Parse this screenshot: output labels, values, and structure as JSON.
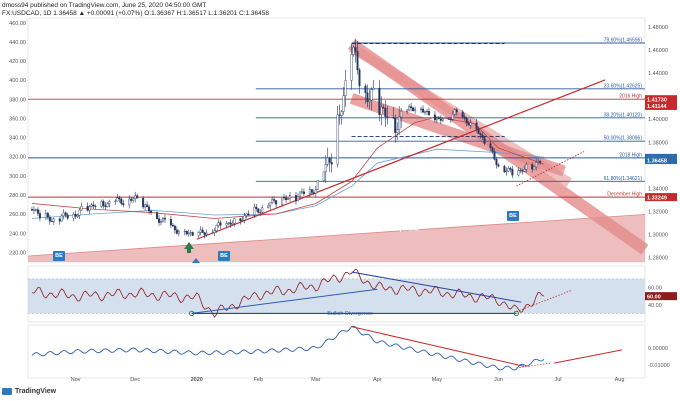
{
  "header": {
    "line1": "dmoss94 published on TradingView.com, June 25, 2020 04:50:00 GMT",
    "line2": "FX:USDCAD, 1D  1.36458 ▲ +0.00091 (+0.07%) O:1.36367 H:1.36517 L:1.36201 C:1.36458"
  },
  "footer": {
    "brand": "TradingView"
  },
  "colors": {
    "candle_up": "#2f4a7a",
    "candle_down": "#2f4a7a",
    "resistance": "#b5373a",
    "support_blue": "#2b5a9e",
    "channel_fill": "#e8a8a8",
    "rsi_band": "#c7d6e8",
    "label_blue": "#2b6cb0",
    "label_red": "#c42b2b"
  },
  "chart_data": [
    {
      "type": "line",
      "title": "",
      "xlabel": "",
      "ylabel": "",
      "x_ticks": [
        "Nov",
        "Dec",
        "2020",
        "Feb",
        "Mar",
        "Apr",
        "May",
        "Jun",
        "Jul",
        "Aug"
      ],
      "left_ticks": [
        "460.00",
        "440.00",
        "420.00",
        "400.00",
        "380.00",
        "360.00",
        "340.00",
        "320.00",
        "300.00",
        "280.00",
        "260.00",
        "240.00",
        "220.00"
      ],
      "left_ylim": [
        210,
        465
      ],
      "right_ticks": [
        "1.48000",
        "1.46000",
        "1.44000",
        "1.42000",
        "1.40000",
        "1.38000",
        "1.36000",
        "1.34000",
        "1.32000",
        "1.30000",
        "1.28000"
      ],
      "right_ylim": [
        1.2763,
        1.4876
      ],
      "series": [
        {
          "x": [
            "Oct 10",
            "Oct 20",
            "Nov 1",
            "Nov 10",
            "Nov 20",
            "Dec 1",
            "Dec 10",
            "Dec 20",
            "Jan 1",
            "Jan 10",
            "Jan 20",
            "Feb 1",
            "Feb 10",
            "Feb 20",
            "Mar 1",
            "Mar 10",
            "Mar 19",
            "Mar 25",
            "Apr 1",
            "Apr 10",
            "Apr 20",
            "May 1",
            "May 10",
            "May 20",
            "Jun 1",
            "Jun 8",
            "Jun 15",
            "Jun 24"
          ],
          "y": [
            1.322,
            1.312,
            1.318,
            1.326,
            1.328,
            1.331,
            1.318,
            1.306,
            1.299,
            1.305,
            1.312,
            1.322,
            1.329,
            1.333,
            1.34,
            1.375,
            1.459,
            1.425,
            1.412,
            1.398,
            1.412,
            1.398,
            1.405,
            1.395,
            1.36,
            1.352,
            1.358,
            1.3646
          ]
        }
      ],
      "levels": [
        {
          "label": "78.60%(1.46596)",
          "value": 1.46596,
          "color": "#2b5a9e"
        },
        {
          "label": "23.60%(1.42625)",
          "value": 1.42625,
          "color": "#2b5a9e"
        },
        {
          "label": "2016 High",
          "value": 1.4173,
          "color": "#b5373a"
        },
        {
          "label": "38.20%(1.40120)",
          "value": 1.4012,
          "color": "#2b5a9e"
        },
        {
          "label": "50.00%(1.38096)",
          "value": 1.38096,
          "color": "#2b5a9e"
        },
        {
          "label": "2018 High",
          "value": 1.36648,
          "color": "#2b5a9e"
        },
        {
          "label": "61.80%(1.34621)",
          "value": 1.34621,
          "color": "#2b5a9e"
        },
        {
          "label": "December High",
          "value": 1.33249,
          "color": "#b5373a"
        }
      ],
      "price_tags": [
        {
          "label": "1.41730",
          "value": 1.4173,
          "color": "#c42b2b"
        },
        {
          "label": "1.41144",
          "value": 1.41144,
          "color": "#c42b2b"
        },
        {
          "label": "1.36648",
          "value": 1.36648,
          "color": "#2b6cb0"
        },
        {
          "label": "1.36458",
          "value": 1.36458,
          "color": "#2b6cb0"
        },
        {
          "label": "1.33249",
          "value": 1.33249,
          "color": "#c42b2b"
        }
      ],
      "annotations": [
        "2011 Uptrend"
      ],
      "badges": [
        "BE",
        "BE",
        "BE"
      ]
    },
    {
      "type": "line",
      "title": "",
      "y_ticks": [
        "60.00",
        "40.00"
      ],
      "ylim": [
        20,
        85
      ],
      "band": [
        30,
        70
      ],
      "x": [
        "Oct 10",
        "Nov 1",
        "Dec 1",
        "Jan 1",
        "Jan 10",
        "Feb 1",
        "Mar 1",
        "Mar 19",
        "Apr 1",
        "May 1",
        "Jun 1",
        "Jun 10",
        "Jun 24"
      ],
      "y": [
        55,
        50,
        53,
        48,
        30,
        52,
        62,
        78,
        60,
        55,
        46,
        32,
        52
      ],
      "annotations": [
        "Bullish Divergence"
      ]
    },
    {
      "type": "line",
      "title": "",
      "y_ticks": [
        "0.00000",
        "-0.01000"
      ],
      "ylim": [
        -0.018,
        0.014
      ],
      "x": [
        "Oct 10",
        "Nov 1",
        "Dec 1",
        "Jan 1",
        "Feb 1",
        "Mar 1",
        "Mar 19",
        "Apr 1",
        "May 1",
        "Jun 1",
        "Jun 10",
        "Jun 24"
      ],
      "y": [
        -0.004,
        -0.002,
        -0.001,
        -0.003,
        -0.002,
        0.0,
        0.013,
        0.004,
        -0.004,
        -0.012,
        -0.012,
        -0.006
      ]
    }
  ]
}
